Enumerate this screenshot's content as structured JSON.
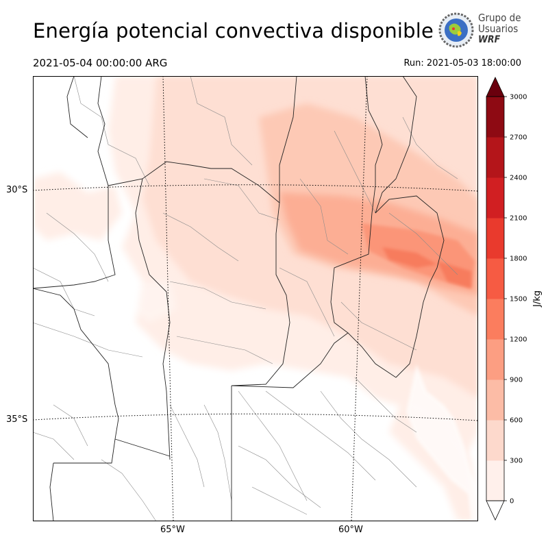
{
  "header": {
    "title": "Energía potencial convectiva disponible",
    "valid_time": "2021-05-04 00:00:00 ARG",
    "run_time": "Run: 2021-05-03 18:00:00"
  },
  "logo": {
    "line1": "Grupo de",
    "line2": "Usuarios",
    "line3": "WRF"
  },
  "map": {
    "lat_labels": [
      "30°S",
      "35°S"
    ],
    "lon_labels": [
      "65°W",
      "60°W"
    ]
  },
  "colorbar": {
    "unit": "J/kg",
    "ticks": [
      "0",
      "300",
      "600",
      "900",
      "1200",
      "1500",
      "1800",
      "2100",
      "2400",
      "2700",
      "3000"
    ],
    "colors": [
      "#fff0eb",
      "#fdd9cc",
      "#fcbca6",
      "#fc9e82",
      "#fb7d5e",
      "#f65b43",
      "#e93a2d",
      "#d11f22",
      "#b4151a",
      "#8e0a13",
      "#6a000d"
    ]
  }
}
